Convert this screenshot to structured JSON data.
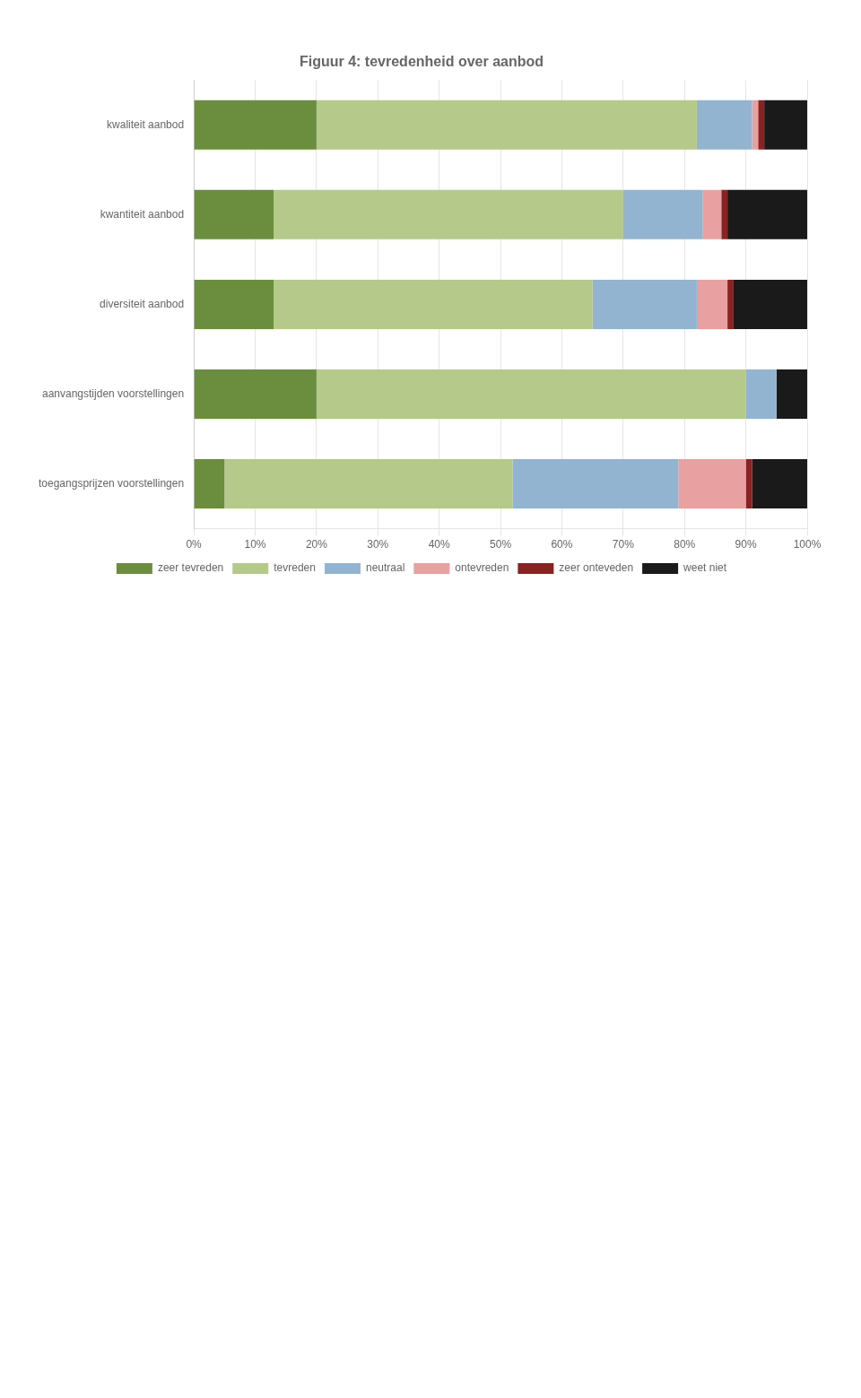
{
  "chart_data": {
    "type": "bar",
    "orientation": "horizontal",
    "stacked": true,
    "title": "Figuur 4: tevredenheid over aanbod",
    "categories": [
      "kwaliteit aanbod",
      "kwantiteit aanbod",
      "diversiteit aanbod",
      "aanvangstijden voorstellingen",
      "toegangsprijzen voorstellingen"
    ],
    "series": [
      {
        "name": "zeer tevreden",
        "color": "#6b8e3e",
        "values": [
          20,
          13,
          13,
          20,
          5
        ]
      },
      {
        "name": "tevreden",
        "color": "#b5c98a",
        "values": [
          62,
          57,
          52,
          70,
          47
        ]
      },
      {
        "name": "neutraal",
        "color": "#92b4d0",
        "values": [
          9,
          13,
          17,
          5,
          27
        ]
      },
      {
        "name": "ontevreden",
        "color": "#e8a0a0",
        "values": [
          1,
          3,
          5,
          0,
          11
        ]
      },
      {
        "name": "zeer onteveden",
        "color": "#8b2222",
        "values": [
          1,
          1,
          1,
          0,
          1
        ]
      },
      {
        "name": "weet niet",
        "color": "#1a1a1a",
        "values": [
          7,
          13,
          12,
          5,
          9
        ]
      }
    ],
    "xlim": [
      0,
      100
    ],
    "xticks": [
      {
        "value": 0,
        "label": "0%"
      },
      {
        "value": 10,
        "label": "10%"
      },
      {
        "value": 20,
        "label": "20%"
      },
      {
        "value": 30,
        "label": "30%"
      },
      {
        "value": 40,
        "label": "40%"
      },
      {
        "value": 50,
        "label": "50%"
      },
      {
        "value": 60,
        "label": "60%"
      },
      {
        "value": 70,
        "label": "70%"
      },
      {
        "value": 80,
        "label": "80%"
      },
      {
        "value": 90,
        "label": "90%"
      },
      {
        "value": 100,
        "label": "100%"
      }
    ],
    "grid": true,
    "legend": "bottom"
  }
}
